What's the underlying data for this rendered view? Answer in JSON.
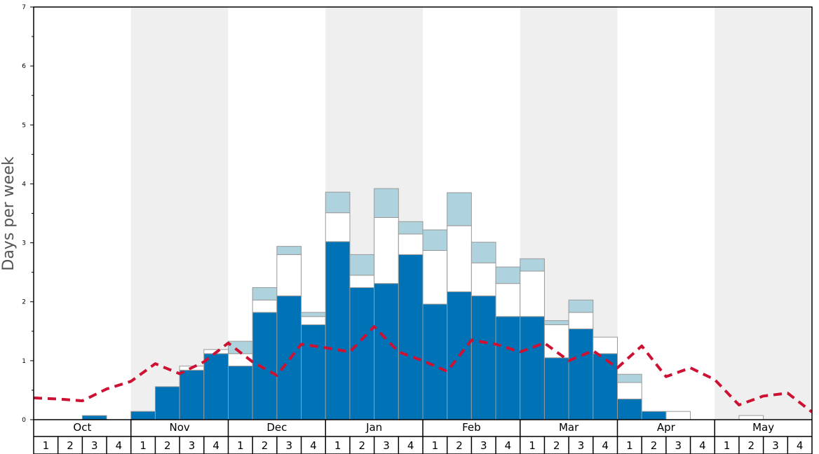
{
  "chart_data": {
    "type": "bar",
    "stacked": true,
    "ylabel": "Days per week",
    "ylim": [
      0,
      7
    ],
    "yticks": [
      0,
      1,
      2,
      3,
      4,
      5,
      6,
      7
    ],
    "months": [
      "Oct",
      "Nov",
      "Dec",
      "Jan",
      "Feb",
      "Mar",
      "Apr",
      "May"
    ],
    "weeks": [
      "1",
      "2",
      "3",
      "4"
    ],
    "shaded_months": [
      "Nov",
      "Jan",
      "Mar",
      "May"
    ],
    "colors": {
      "base": "#0073b6",
      "middle": "#ffffff",
      "top": "#aed3df",
      "line": "#cc1133",
      "shade": "#efefef"
    },
    "series": [
      {
        "values": [
          0,
          0,
          0.07,
          0,
          0.14,
          0.56,
          0.84,
          1.12,
          0.91,
          1.82,
          2.1,
          1.61,
          3.02,
          2.24,
          2.31,
          2.8,
          1.96,
          2.17,
          2.1,
          1.75,
          1.75,
          1.05,
          1.54,
          1.12,
          0.35,
          0.14,
          0,
          0,
          0,
          0,
          0,
          0
        ]
      },
      {
        "values": [
          0,
          0,
          0,
          0,
          0,
          0,
          0.07,
          0.07,
          0.21,
          0.21,
          0.7,
          0.14,
          0.49,
          0.21,
          1.12,
          0.35,
          0.91,
          1.12,
          0.56,
          0.56,
          0.77,
          0.56,
          0.28,
          0.28,
          0.28,
          0,
          0.14,
          0,
          0,
          0.07,
          0,
          0
        ]
      },
      {
        "values": [
          0,
          0,
          0,
          0,
          0,
          0,
          0,
          0,
          0.21,
          0.21,
          0.14,
          0.07,
          0.35,
          0.35,
          0.49,
          0.21,
          0.35,
          0.56,
          0.35,
          0.28,
          0.21,
          0.07,
          0.21,
          0,
          0.14,
          0,
          0,
          0,
          0,
          0,
          0,
          0
        ]
      },
      {
        "values": [
          0.37,
          0.35,
          0.32,
          0.52,
          0.65,
          0.95,
          0.78,
          0.98,
          1.3,
          0.98,
          0.75,
          1.28,
          1.22,
          1.15,
          1.58,
          1.15,
          1.0,
          0.82,
          1.35,
          1.28,
          1.15,
          1.3,
          1.0,
          1.17,
          0.88,
          1.25,
          0.73,
          0.88,
          0.68,
          0.25,
          0.4,
          0.45,
          0.13
        ]
      }
    ]
  }
}
